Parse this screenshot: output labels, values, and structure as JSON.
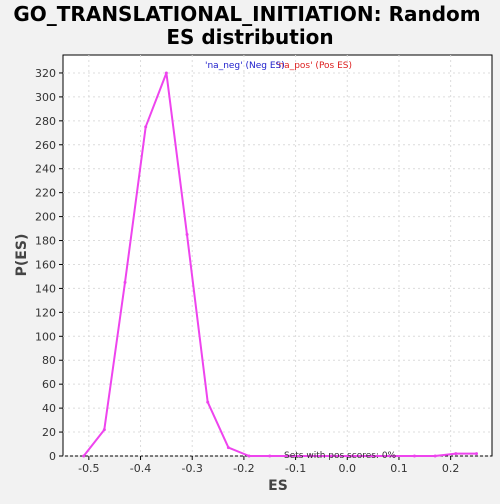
{
  "chart_data": {
    "type": "line",
    "title": "GO_TRANSLATIONAL_INITIATION: Random ES distribution",
    "title_lines": [
      "GO_TRANSLATIONAL_INITIATION: Random",
      "ES distribution"
    ],
    "xlabel": "ES",
    "ylabel": "P(ES)",
    "xlim": [
      -0.55,
      0.28
    ],
    "ylim": [
      0,
      335
    ],
    "xticks": [
      -0.5,
      -0.4,
      -0.3,
      -0.2,
      -0.1,
      0.0,
      0.1,
      0.2
    ],
    "xtick_labels": [
      "-0.5",
      "-0.4",
      "-0.3",
      "-0.2",
      "-0.1",
      "0.0",
      "0.1",
      "0.2"
    ],
    "yticks": [
      0,
      20,
      40,
      60,
      80,
      100,
      120,
      140,
      160,
      180,
      200,
      220,
      240,
      260,
      280,
      300,
      320
    ],
    "ytick_labels": [
      "0",
      "20",
      "40",
      "60",
      "80",
      "100",
      "120",
      "140",
      "160",
      "180",
      "200",
      "220",
      "240",
      "260",
      "280",
      "300",
      "320"
    ],
    "grid": true,
    "legend": {
      "placement": "top-center",
      "entries": [
        {
          "label": "'na_neg' (Neg ES)",
          "color": "#2020cc"
        },
        {
          "label": "'na_pos' (Pos ES)",
          "color": "#dd2020"
        }
      ]
    },
    "annotation": "Sets with pos scores: 0%",
    "series": [
      {
        "name": "Random ES distribution",
        "color": "#ee44ee",
        "x": [
          -0.51,
          -0.47,
          -0.43,
          -0.39,
          -0.35,
          -0.31,
          -0.27,
          -0.23,
          -0.19,
          -0.15,
          -0.11,
          -0.07,
          -0.03,
          0.01,
          0.05,
          0.09,
          0.13,
          0.17,
          0.21,
          0.25
        ],
        "values": [
          0,
          22,
          145,
          275,
          320,
          185,
          45,
          7,
          0,
          0,
          0,
          0,
          0,
          0,
          0,
          0,
          0,
          0,
          2,
          2
        ]
      }
    ]
  }
}
